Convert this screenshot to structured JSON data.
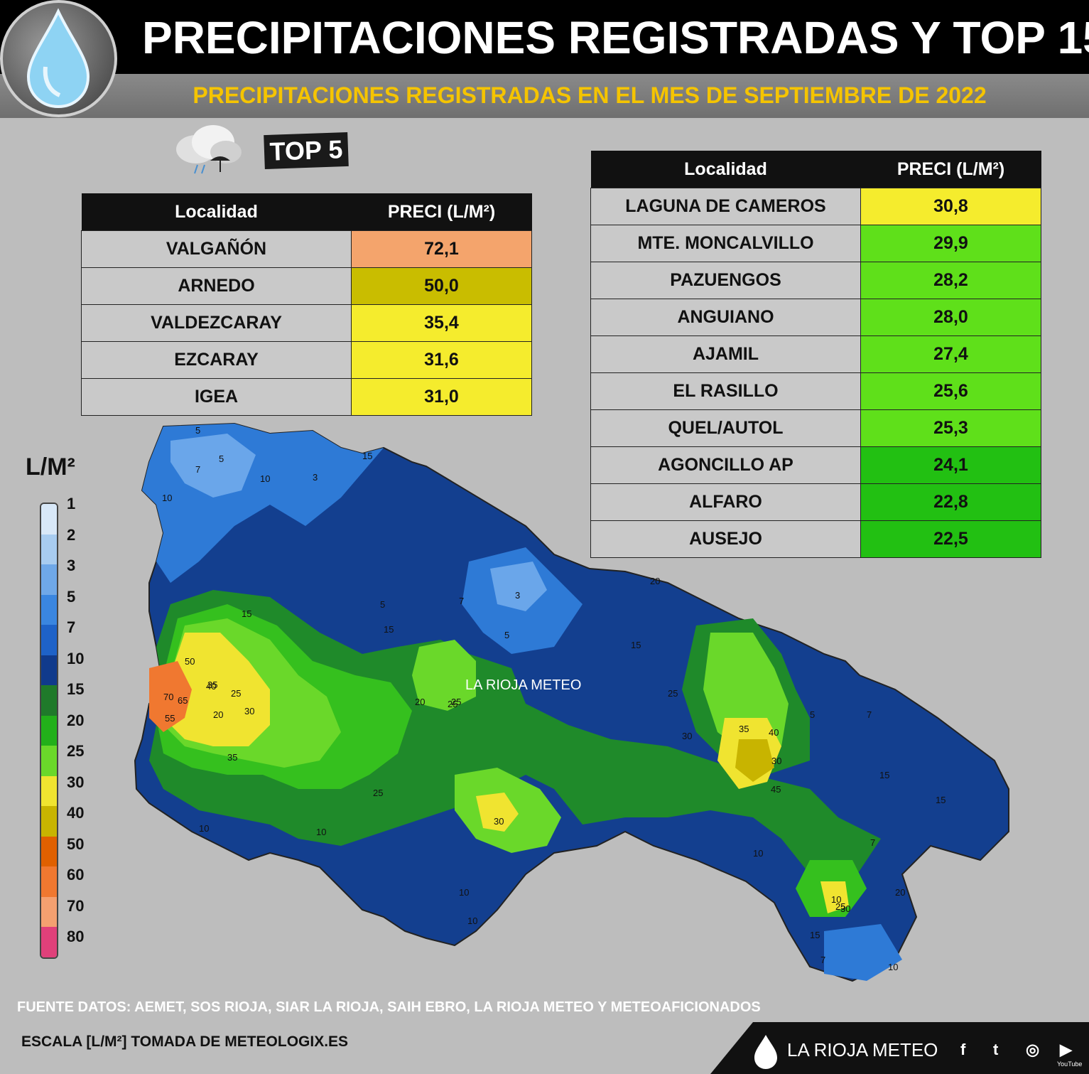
{
  "header": {
    "title": "PRECIPITACIONES REGISTRADAS Y TOP 15",
    "subtitle": "PRECIPITACIONES REGISTRADAS EN EL MES DE SEPTIEMBRE DE 2022",
    "top5_badge": "TOP 5"
  },
  "top5": {
    "col_localidad": "Localidad",
    "col_preci": "PRECI (L/M²)",
    "rows": [
      {
        "loc": "VALGAÑÓN",
        "val": "72,1",
        "color": "#f4a46c"
      },
      {
        "loc": "ARNEDO",
        "val": "50,0",
        "color": "#c9bd00"
      },
      {
        "loc": "VALDEZCARAY",
        "val": "35,4",
        "color": "#f5ec2d"
      },
      {
        "loc": "EZCARAY",
        "val": "31,6",
        "color": "#f5ec2d"
      },
      {
        "loc": "IGEA",
        "val": "31,0",
        "color": "#f5ec2d"
      }
    ]
  },
  "top15": {
    "col_localidad": "Localidad",
    "col_preci": "PRECI (L/M²)",
    "rows": [
      {
        "loc": "LAGUNA DE CAMEROS",
        "val": "30,8",
        "color": "#f5ec2d"
      },
      {
        "loc": "MTE. MONCALVILLO",
        "val": "29,9",
        "color": "#5fe01a"
      },
      {
        "loc": "PAZUENGOS",
        "val": "28,2",
        "color": "#5fe01a"
      },
      {
        "loc": "ANGUIANO",
        "val": "28,0",
        "color": "#5fe01a"
      },
      {
        "loc": "AJAMIL",
        "val": "27,4",
        "color": "#5fe01a"
      },
      {
        "loc": "EL RASILLO",
        "val": "25,6",
        "color": "#5fe01a"
      },
      {
        "loc": "QUEL/AUTOL",
        "val": "25,3",
        "color": "#5fe01a"
      },
      {
        "loc": "AGONCILLO AP",
        "val": "24,1",
        "color": "#22c012"
      },
      {
        "loc": "ALFARO",
        "val": "22,8",
        "color": "#22c012"
      },
      {
        "loc": "AUSEJO",
        "val": "22,5",
        "color": "#22c012"
      }
    ]
  },
  "legend": {
    "title": "L/M²",
    "levels": [
      {
        "label": "1",
        "color": "#d8e8f8"
      },
      {
        "label": "2",
        "color": "#a8ccf0"
      },
      {
        "label": "3",
        "color": "#6fa8e8"
      },
      {
        "label": "5",
        "color": "#3a86e0"
      },
      {
        "label": "7",
        "color": "#1e62c8"
      },
      {
        "label": "10",
        "color": "#103a8c"
      },
      {
        "label": "15",
        "color": "#1f7a2a"
      },
      {
        "label": "20",
        "color": "#22b01a"
      },
      {
        "label": "25",
        "color": "#6ad82a"
      },
      {
        "label": "30",
        "color": "#f0e430"
      },
      {
        "label": "40",
        "color": "#c8b400"
      },
      {
        "label": "50",
        "color": "#e06000"
      },
      {
        "label": "60",
        "color": "#f07830"
      },
      {
        "label": "70",
        "color": "#f4a070"
      },
      {
        "label": "80",
        "color": "#e0407a"
      }
    ]
  },
  "map_labels": [
    "5",
    "7",
    "10",
    "5",
    "3",
    "15",
    "10",
    "15",
    "3",
    "7",
    "5",
    "5",
    "15",
    "20",
    "25",
    "20",
    "15",
    "30",
    "25",
    "35",
    "40",
    "45",
    "30",
    "35",
    "40",
    "50",
    "55",
    "65",
    "70",
    "25",
    "35",
    "20",
    "30",
    "25",
    "25",
    "30",
    "10",
    "10",
    "10",
    "10",
    "7",
    "5",
    "10",
    "15",
    "20",
    "15",
    "25",
    "30",
    "15",
    "10",
    "7",
    "10",
    "7"
  ],
  "watermark": "LA RIOJA METEO",
  "footer": {
    "sources": "FUENTE DATOS: AEMET, SOS RIOJA, SIAR LA RIOJA, SAIH EBRO, LA RIOJA METEO  Y METEOAFICIONADOS",
    "scale": "ESCALA [L/M²] TOMADA DE METEOLOGIX.ES",
    "brand": "LA RIOJA METEO",
    "social": [
      "f",
      "t",
      "◎",
      "▶"
    ],
    "youtube_caption": "YouTube"
  }
}
